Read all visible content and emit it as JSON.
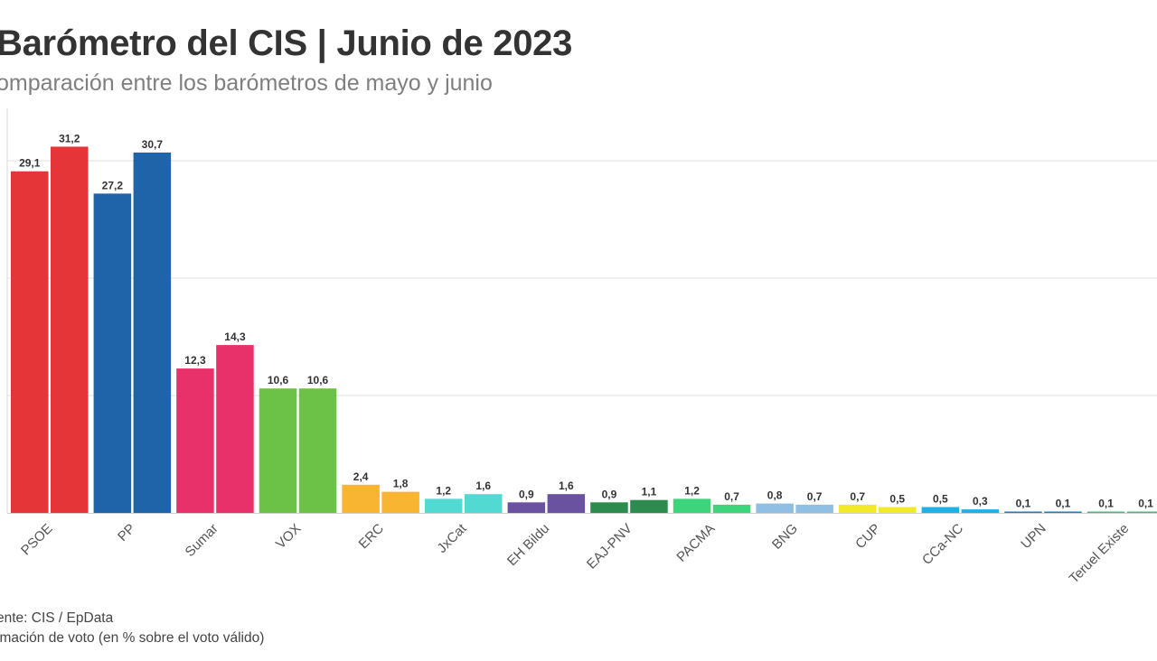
{
  "title": "Barómetro del CIS | Junio de 2023",
  "subtitle": "omparación entre los barómetros de mayo y junio",
  "footer": {
    "source": "ente: CIS / EpData",
    "note": "imación de voto (en % sobre el voto válido)"
  },
  "chart_data": {
    "type": "bar",
    "title": "Barómetro del CIS | Junio de 2023",
    "subtitle": "omparación entre los barómetros de mayo y junio",
    "ylim": [
      0,
      33
    ],
    "grid": true,
    "categories": [
      "PSOE",
      "PP",
      "Sumar",
      "VOX",
      "ERC",
      "JxCat",
      "EH Bildu",
      "EAJ-PNV",
      "PACMA",
      "BNG",
      "CUP",
      "CCa-NC",
      "UPN",
      "Teruel Existe"
    ],
    "series": [
      {
        "values": [
          29.1,
          27.2,
          12.3,
          10.6,
          2.4,
          1.2,
          0.9,
          0.9,
          1.2,
          0.8,
          0.7,
          0.5,
          0.1,
          0.1
        ]
      },
      {
        "values": [
          31.2,
          30.7,
          14.3,
          10.6,
          1.8,
          1.6,
          1.6,
          1.1,
          0.7,
          0.7,
          0.5,
          0.3,
          0.1,
          0.1
        ]
      }
    ],
    "value_labels": [
      [
        "29,1",
        "27,2",
        "12,3",
        "10,6",
        "2,4",
        "1,2",
        "0,9",
        "0,9",
        "1,2",
        "0,8",
        "0,7",
        "0,5",
        "0,1",
        "0,1"
      ],
      [
        "31,2",
        "30,7",
        "14,3",
        "10,6",
        "1,8",
        "1,6",
        "1,6",
        "1,1",
        "0,7",
        "0,7",
        "0,5",
        "0,3",
        "0,1",
        "0,1"
      ]
    ],
    "colors": [
      "#e63538",
      "#1f63a8",
      "#e8306a",
      "#6cc246",
      "#f8b531",
      "#52d9d2",
      "#6b52a1",
      "#2e8b50",
      "#3ed47c",
      "#8fbfe3",
      "#f2ea28",
      "#1fb0e4",
      "#1b7fc2",
      "#4fb57e"
    ]
  }
}
